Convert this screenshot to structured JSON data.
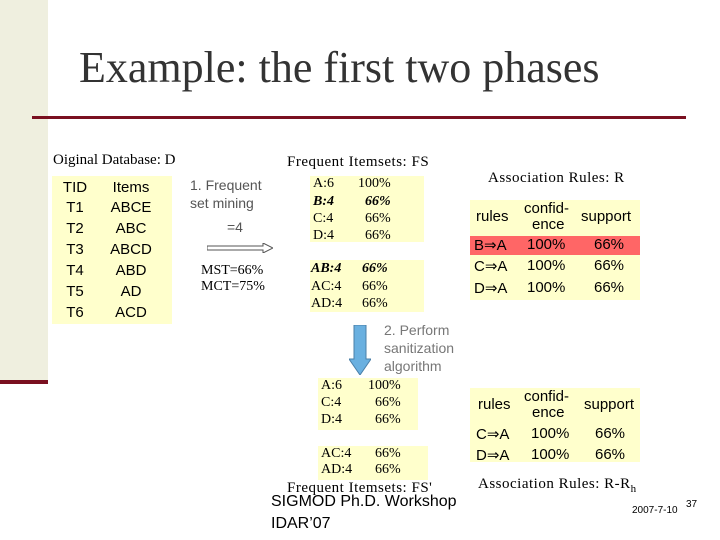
{
  "title": "Example: the first two phases",
  "original_db": {
    "label": "Oiginal Database: D",
    "headers": [
      "TID",
      "Items"
    ],
    "rows": [
      [
        "T1",
        "ABCE"
      ],
      [
        "T2",
        "ABC"
      ],
      [
        "T3",
        "ABCD"
      ],
      [
        "T4",
        "ABD"
      ],
      [
        "T5",
        "AD"
      ],
      [
        "T6",
        "ACD"
      ]
    ]
  },
  "step1": {
    "line1": "1. Frequent",
    "line2": "set mining",
    "line3": "=4"
  },
  "thresholds": {
    "mst": "MST=66%",
    "mct": "MCT=75%"
  },
  "frequent_itemsets": {
    "label": "Frequent Itemsets: FS",
    "group1": [
      {
        "item": "A:6",
        "pct": "100%",
        "emph": false
      },
      {
        "item": "B:4",
        "pct": "66%",
        "emph": true
      },
      {
        "item": "C:4",
        "pct": "66%",
        "emph": false
      },
      {
        "item": "D:4",
        "pct": "66%",
        "emph": false
      }
    ],
    "group2": [
      {
        "item": "AB:4",
        "pct": "66%",
        "emph": true
      },
      {
        "item": "AC:4",
        "pct": "66%",
        "emph": false
      },
      {
        "item": "AD:4",
        "pct": "66%",
        "emph": false
      }
    ]
  },
  "association_rules": {
    "label": "Association Rules: R",
    "headers": [
      "rules",
      "confid-",
      "ence",
      "support"
    ],
    "rows": [
      {
        "rule": "B⇒A",
        "confidence": "100%",
        "support": "66%",
        "highlight": true
      },
      {
        "rule": "C⇒A",
        "confidence": "100%",
        "support": "66%",
        "highlight": false
      },
      {
        "rule": "D⇒A",
        "confidence": "100%",
        "support": "66%",
        "highlight": false
      }
    ]
  },
  "step2": {
    "line1": "2. Perform",
    "line2": "sanitization",
    "line3": "algorithm"
  },
  "sanitized_itemsets": {
    "label": "Frequent Itemsets: FS'",
    "group1": [
      {
        "item": "A:6",
        "pct": "100%"
      },
      {
        "item": "C:4",
        "pct": "66%"
      },
      {
        "item": "D:4",
        "pct": "66%"
      }
    ],
    "group2": [
      {
        "item": "AC:4",
        "pct": "66%"
      },
      {
        "item": "AD:4",
        "pct": "66%"
      }
    ]
  },
  "sanitized_rules": {
    "label_main": "Association Rules: R-R",
    "label_sub": "h",
    "headers": [
      "rules",
      "confid-",
      "ence",
      "support"
    ],
    "rows": [
      {
        "rule": "C⇒A",
        "confidence": "100%",
        "support": "66%"
      },
      {
        "rule": "D⇒A",
        "confidence": "100%",
        "support": "66%"
      }
    ]
  },
  "footer": {
    "venue_line1": "SIGMOD Ph.D. Workshop",
    "venue_line2": "IDAR’07",
    "date": "2007-7-10",
    "page": "37"
  },
  "colors": {
    "accent_line": "#7a1020",
    "box_fill": "#ffffcc",
    "highlight_row": "#ff6666",
    "arrow_fill": "#6ab0e0"
  }
}
